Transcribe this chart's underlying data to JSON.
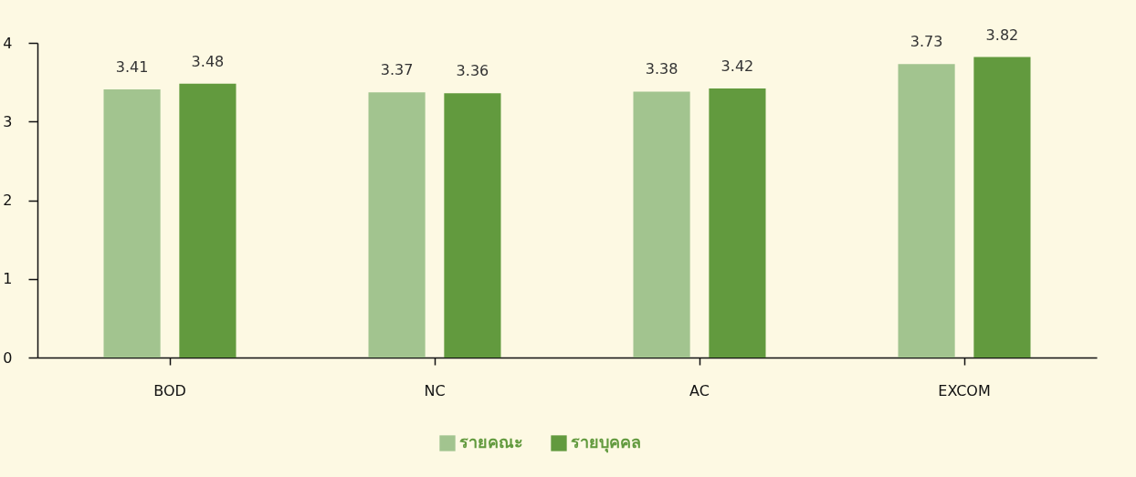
{
  "chart_data": {
    "type": "bar",
    "categories": [
      "BOD",
      "NC",
      "AC",
      "EXCOM"
    ],
    "series": [
      {
        "name": "รายคณะ",
        "color": "#a2c48f",
        "values": [
          3.41,
          3.37,
          3.38,
          3.73
        ]
      },
      {
        "name": "รายบุคคล",
        "color": "#629a3e",
        "values": [
          3.48,
          3.36,
          3.42,
          3.82
        ]
      }
    ],
    "ylim": [
      0,
      4
    ],
    "yticks": [
      0,
      1,
      2,
      3,
      4
    ],
    "grid": false,
    "legend": "bottom",
    "data_labels": true
  }
}
